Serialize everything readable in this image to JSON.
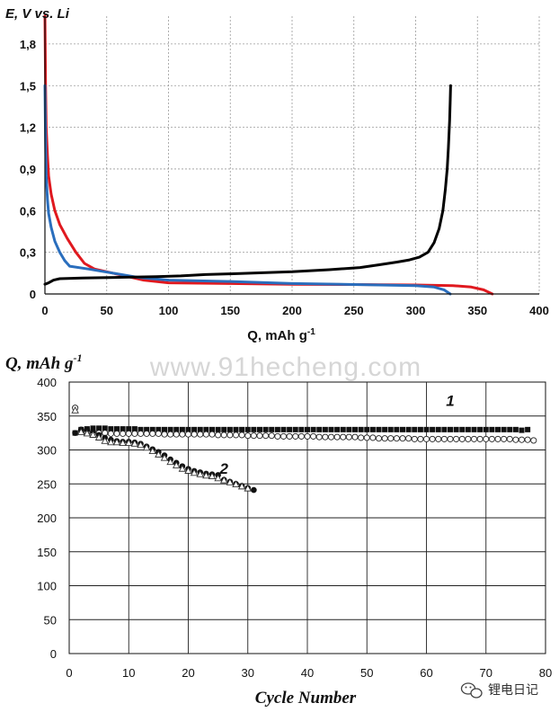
{
  "watermark": "www.91hecheng.com",
  "logo_text": "锂电日记",
  "chart_data": [
    {
      "type": "line",
      "ylabel": "E, V vs. Li",
      "xlabel_main": "Q, mAh g",
      "xlabel_sup": "-1",
      "xlim": [
        0,
        400
      ],
      "ylim": [
        0,
        2.0
      ],
      "x_ticks": [
        "0",
        "50",
        "100",
        "150",
        "200",
        "250",
        "300",
        "350",
        "400"
      ],
      "y_ticks": [
        "0",
        "0,3",
        "0,6",
        "0,9",
        "1,2",
        "1,5",
        "1,8"
      ],
      "grid": true,
      "series": [
        {
          "color": "#e0191f",
          "points": [
            [
              0,
              2.0
            ],
            [
              0.5,
              1.5
            ],
            [
              1,
              1.2
            ],
            [
              2,
              1.0
            ],
            [
              3,
              0.85
            ],
            [
              5,
              0.72
            ],
            [
              8,
              0.6
            ],
            [
              12,
              0.5
            ],
            [
              18,
              0.4
            ],
            [
              25,
              0.3
            ],
            [
              32,
              0.22
            ],
            [
              40,
              0.18
            ],
            [
              60,
              0.14
            ],
            [
              80,
              0.1
            ],
            [
              100,
              0.08
            ],
            [
              150,
              0.075
            ],
            [
              200,
              0.07
            ],
            [
              250,
              0.068
            ],
            [
              300,
              0.065
            ],
            [
              330,
              0.06
            ],
            [
              345,
              0.05
            ],
            [
              355,
              0.03
            ],
            [
              362,
              0.0
            ]
          ]
        },
        {
          "color": "#2a6ebd",
          "points": [
            [
              0,
              1.5
            ],
            [
              0.5,
              1.1
            ],
            [
              1,
              0.85
            ],
            [
              2,
              0.68
            ],
            [
              3,
              0.58
            ],
            [
              5,
              0.48
            ],
            [
              8,
              0.38
            ],
            [
              12,
              0.3
            ],
            [
              16,
              0.24
            ],
            [
              20,
              0.2
            ],
            [
              35,
              0.18
            ],
            [
              55,
              0.15
            ],
            [
              75,
              0.12
            ],
            [
              100,
              0.1
            ],
            [
              150,
              0.09
            ],
            [
              200,
              0.075
            ],
            [
              250,
              0.068
            ],
            [
              300,
              0.06
            ],
            [
              315,
              0.05
            ],
            [
              323,
              0.03
            ],
            [
              328,
              0.0
            ]
          ]
        },
        {
          "color": "#000000",
          "points": [
            [
              0,
              0.07
            ],
            [
              3,
              0.08
            ],
            [
              7,
              0.1
            ],
            [
              12,
              0.11
            ],
            [
              30,
              0.115
            ],
            [
              60,
              0.12
            ],
            [
              90,
              0.125
            ],
            [
              110,
              0.13
            ],
            [
              130,
              0.14
            ],
            [
              150,
              0.145
            ],
            [
              200,
              0.16
            ],
            [
              230,
              0.175
            ],
            [
              255,
              0.19
            ],
            [
              270,
              0.21
            ],
            [
              285,
              0.23
            ],
            [
              295,
              0.245
            ],
            [
              303,
              0.265
            ],
            [
              310,
              0.3
            ],
            [
              315,
              0.37
            ],
            [
              319,
              0.47
            ],
            [
              322,
              0.6
            ],
            [
              324,
              0.75
            ],
            [
              325.5,
              0.9
            ],
            [
              326.5,
              1.05
            ],
            [
              327.5,
              1.25
            ],
            [
              328,
              1.4
            ],
            [
              328.3,
              1.5
            ]
          ]
        }
      ]
    },
    {
      "type": "scatter",
      "ylabel_main": "Q, mAh g",
      "ylabel_sup": "-1",
      "xlabel": "Cycle  Number",
      "xlim": [
        0,
        80
      ],
      "ylim": [
        0,
        400
      ],
      "x_ticks": [
        "0",
        "10",
        "20",
        "30",
        "40",
        "50",
        "60",
        "70",
        "80"
      ],
      "y_ticks": [
        "0",
        "50",
        "100",
        "150",
        "200",
        "250",
        "300",
        "350",
        "400"
      ],
      "grid": true,
      "annotations": [
        {
          "text": "1",
          "x": 64,
          "y": 365
        },
        {
          "text": "2",
          "x": 26,
          "y": 265
        }
      ],
      "series": [
        {
          "marker": "filled-square",
          "x": [
            1,
            2,
            3,
            4,
            5,
            6,
            7,
            8,
            9,
            10,
            11,
            12,
            13,
            14,
            15,
            16,
            17,
            18,
            19,
            20,
            21,
            22,
            23,
            24,
            25,
            26,
            27,
            28,
            29,
            30,
            31,
            32,
            33,
            34,
            35,
            36,
            37,
            38,
            39,
            40,
            41,
            42,
            43,
            44,
            45,
            46,
            47,
            48,
            49,
            50,
            51,
            52,
            53,
            54,
            55,
            56,
            57,
            58,
            59,
            60,
            61,
            62,
            63,
            64,
            65,
            66,
            67,
            68,
            69,
            70,
            71,
            72,
            73,
            74,
            75,
            76,
            77
          ],
          "y": [
            325,
            330,
            331,
            332,
            332,
            332,
            331,
            331,
            331,
            331,
            331,
            330,
            330,
            330,
            330,
            330,
            330,
            330,
            330,
            330,
            330,
            330,
            330,
            330,
            330,
            330,
            330,
            330,
            330,
            330,
            330,
            330,
            330,
            330,
            330,
            330,
            330,
            330,
            330,
            330,
            330,
            330,
            330,
            330,
            330,
            330,
            330,
            330,
            330,
            330,
            330,
            330,
            330,
            330,
            330,
            330,
            330,
            330,
            330,
            330,
            330,
            330,
            330,
            330,
            330,
            330,
            330,
            330,
            330,
            330,
            330,
            330,
            330,
            330,
            330,
            329,
            330
          ]
        },
        {
          "marker": "open-circle",
          "x": [
            1,
            2,
            3,
            4,
            5,
            6,
            7,
            8,
            9,
            10,
            11,
            12,
            13,
            14,
            15,
            16,
            17,
            18,
            19,
            20,
            21,
            22,
            23,
            24,
            25,
            26,
            27,
            28,
            29,
            30,
            31,
            32,
            33,
            34,
            35,
            36,
            37,
            38,
            39,
            40,
            41,
            42,
            43,
            44,
            45,
            46,
            47,
            48,
            49,
            50,
            51,
            52,
            53,
            54,
            55,
            56,
            57,
            58,
            59,
            60,
            61,
            62,
            63,
            64,
            65,
            66,
            67,
            68,
            69,
            70,
            71,
            72,
            73,
            74,
            75,
            76,
            77,
            78
          ],
          "y": [
            362,
            328,
            326,
            325,
            325,
            325,
            324,
            324,
            324,
            324,
            324,
            324,
            324,
            324,
            324,
            323,
            323,
            323,
            323,
            323,
            323,
            323,
            323,
            323,
            322,
            322,
            322,
            322,
            322,
            321,
            321,
            321,
            321,
            321,
            320,
            320,
            320,
            320,
            320,
            320,
            320,
            319,
            319,
            319,
            319,
            319,
            319,
            319,
            318,
            318,
            318,
            317,
            317,
            317,
            317,
            317,
            317,
            316,
            316,
            316,
            316,
            316,
            316,
            316,
            316,
            316,
            316,
            316,
            316,
            316,
            316,
            316,
            316,
            316,
            315,
            315,
            315,
            314
          ]
        },
        {
          "marker": "filled-circle",
          "x": [
            1,
            2,
            3,
            4,
            5,
            6,
            7,
            8,
            9,
            10,
            11,
            12,
            13,
            14,
            15,
            16,
            17,
            18,
            19,
            20,
            21,
            22,
            23,
            24,
            25,
            26,
            27,
            28,
            29,
            30,
            31
          ],
          "y": [
            325,
            330,
            330,
            328,
            322,
            318,
            315,
            313,
            312,
            312,
            311,
            309,
            305,
            301,
            297,
            292,
            286,
            281,
            276,
            272,
            269,
            267,
            265,
            264,
            263,
            256,
            253,
            250,
            247,
            244,
            241
          ]
        },
        {
          "marker": "open-triangle",
          "x": [
            1,
            2,
            3,
            4,
            5,
            6,
            7,
            8,
            9,
            10,
            11,
            12,
            13,
            14,
            15,
            16,
            17,
            18,
            19,
            20,
            21,
            22,
            23,
            24,
            25,
            26,
            27,
            28,
            29,
            30
          ],
          "y": [
            358,
            326,
            324,
            322,
            318,
            313,
            311,
            311,
            310,
            310,
            309,
            307,
            303,
            298,
            293,
            288,
            282,
            277,
            272,
            269,
            266,
            264,
            262,
            261,
            258,
            255,
            252,
            249,
            246,
            243
          ]
        }
      ]
    }
  ]
}
